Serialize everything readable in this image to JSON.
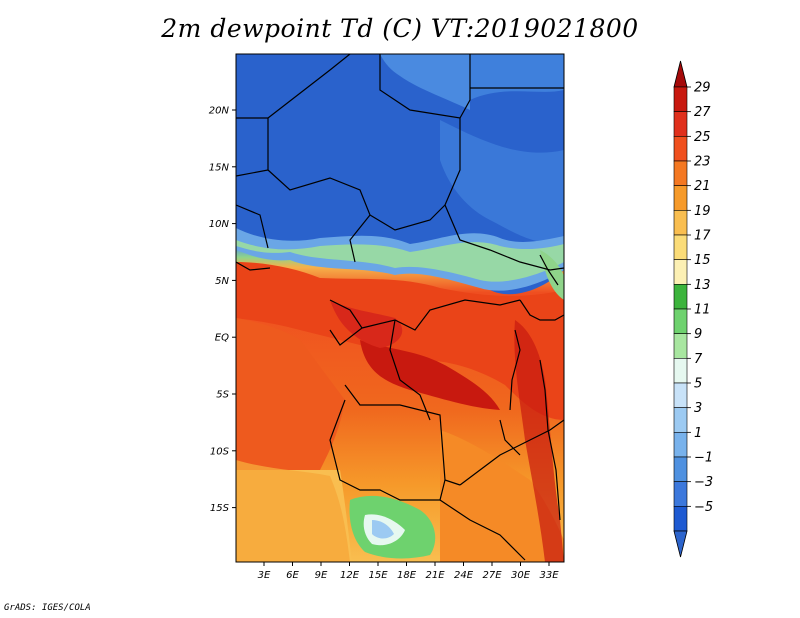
{
  "title": "2m dewpoint Td (C) VT:2019021800",
  "credit": "GrADS: IGES/COLA",
  "map": {
    "lat_labels": [
      "20N",
      "15N",
      "10N",
      "5N",
      "EQ",
      "5S",
      "10S",
      "15S"
    ],
    "lon_labels": [
      "3E",
      "6E",
      "9E",
      "12E",
      "15E",
      "18E",
      "21E",
      "24E",
      "27E",
      "30E",
      "33E"
    ]
  },
  "colorbar": {
    "labels": [
      "29",
      "27",
      "25",
      "23",
      "21",
      "19",
      "17",
      "15",
      "13",
      "11",
      "9",
      "7",
      "5",
      "3",
      "1",
      "−1",
      "−3",
      "−5"
    ],
    "colors": [
      "#a50a0a",
      "#c8190f",
      "#e0301c",
      "#f0501e",
      "#f47822",
      "#f69a2a",
      "#f9be50",
      "#fbdc78",
      "#fcf0b4",
      "#3cb43c",
      "#6ed26e",
      "#a8e6a0",
      "#e6f8f0",
      "#c8e2f8",
      "#9ccaf2",
      "#78b2ec",
      "#4f91e0",
      "#3c78dc",
      "#1e5ad2",
      "#2c64cc"
    ]
  }
}
